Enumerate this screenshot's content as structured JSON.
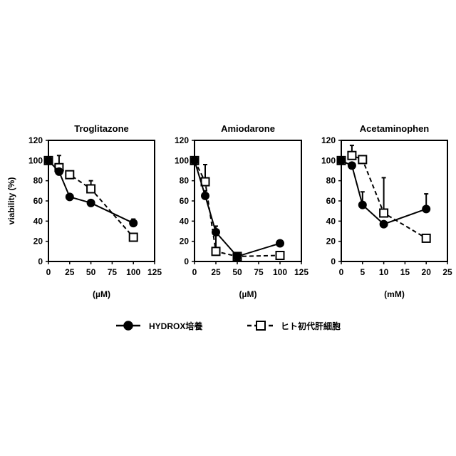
{
  "legend": {
    "entries": [
      {
        "label": "HYDROX培養",
        "marker": "filled-circle",
        "line": "solid"
      },
      {
        "label": "ヒト初代肝細胞",
        "marker": "open-square",
        "line": "dashed"
      }
    ]
  },
  "chart_data": [
    {
      "type": "line",
      "title": "Troglitazone",
      "xlabel": "(µM)",
      "ylabel": "viability (%)",
      "xlim": [
        0,
        125
      ],
      "ylim": [
        0,
        120
      ],
      "xticks": [
        "0",
        "25",
        "50",
        "75",
        "100",
        "125"
      ],
      "yticks": [
        "0",
        "20",
        "40",
        "60",
        "80",
        "100",
        "120"
      ],
      "grid": false,
      "series": [
        {
          "name": "HYDROX培養",
          "x": [
            0,
            12.5,
            25,
            50,
            100
          ],
          "y": [
            100,
            89,
            64,
            58,
            38
          ],
          "err": [
            0,
            0,
            0,
            0,
            4
          ]
        },
        {
          "name": "ヒト初代肝細胞",
          "x": [
            0,
            12.5,
            25,
            50,
            100
          ],
          "y": [
            100,
            93,
            86,
            72,
            24
          ],
          "err": [
            0,
            12,
            0,
            8,
            0
          ]
        }
      ]
    },
    {
      "type": "line",
      "title": "Amiodarone",
      "xlabel": "(µM)",
      "ylabel": "",
      "xlim": [
        0,
        125
      ],
      "ylim": [
        0,
        120
      ],
      "xticks": [
        "0",
        "25",
        "50",
        "75",
        "100",
        "125"
      ],
      "yticks": [
        "0",
        "20",
        "40",
        "60",
        "80",
        "100",
        "120"
      ],
      "grid": false,
      "series": [
        {
          "name": "HYDROX培養",
          "x": [
            0,
            12.5,
            25,
            50,
            100
          ],
          "y": [
            100,
            65,
            29,
            5,
            18
          ],
          "err": [
            0,
            5,
            6,
            0,
            3
          ]
        },
        {
          "name": "ヒト初代肝細胞",
          "x": [
            0,
            12.5,
            25,
            50,
            100
          ],
          "y": [
            100,
            79,
            10,
            5,
            6
          ],
          "err": [
            0,
            17,
            18,
            0,
            0
          ]
        }
      ]
    },
    {
      "type": "line",
      "title": "Acetaminophen",
      "xlabel": "(mM)",
      "ylabel": "",
      "xlim": [
        0,
        25
      ],
      "ylim": [
        0,
        120
      ],
      "xticks": [
        "0",
        "5",
        "10",
        "15",
        "20",
        "25"
      ],
      "yticks": [
        "0",
        "20",
        "40",
        "60",
        "80",
        "100",
        "120"
      ],
      "grid": false,
      "series": [
        {
          "name": "HYDROX培養",
          "x": [
            0,
            2.5,
            5,
            10,
            20
          ],
          "y": [
            100,
            95,
            56,
            37,
            52
          ],
          "err": [
            0,
            0,
            13,
            0,
            15
          ]
        },
        {
          "name": "ヒト初代肝細胞",
          "x": [
            0,
            2.5,
            5,
            10,
            20
          ],
          "y": [
            100,
            105,
            101,
            48,
            23
          ],
          "err": [
            0,
            10,
            0,
            35,
            0
          ]
        }
      ]
    }
  ]
}
